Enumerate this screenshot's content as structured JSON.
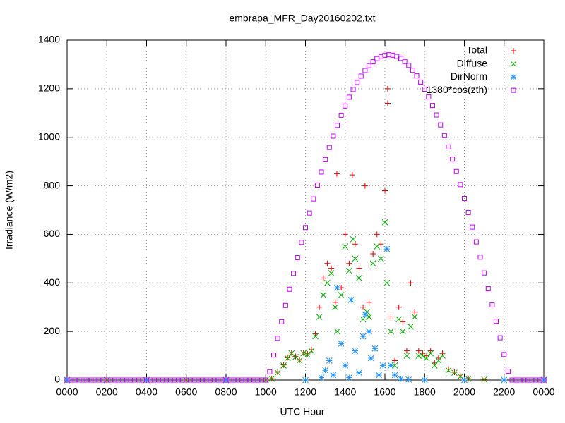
{
  "chart_data": {
    "type": "scatter",
    "title": "embrapa_MFR_Day20160202.txt",
    "xlabel": "UTC Hour",
    "ylabel": "Irradiance (W/m2)",
    "xlim": [
      0,
      24
    ],
    "ylim": [
      0,
      1400
    ],
    "xticks": [
      {
        "value": 0,
        "label": "0000"
      },
      {
        "value": 2,
        "label": "0200"
      },
      {
        "value": 4,
        "label": "0400"
      },
      {
        "value": 6,
        "label": "0600"
      },
      {
        "value": 8,
        "label": "0800"
      },
      {
        "value": 10,
        "label": "1000"
      },
      {
        "value": 12,
        "label": "1200"
      },
      {
        "value": 14,
        "label": "1400"
      },
      {
        "value": 16,
        "label": "1600"
      },
      {
        "value": 18,
        "label": "1800"
      },
      {
        "value": 20,
        "label": "2000"
      },
      {
        "value": 22,
        "label": "2200"
      },
      {
        "value": 24,
        "label": "0000"
      }
    ],
    "yticks": [
      0,
      200,
      400,
      600,
      800,
      1000,
      1200,
      1400
    ],
    "grid": true,
    "legend": "top-right",
    "series": [
      {
        "name": "Total",
        "color": "#e00000",
        "marker": "plus",
        "x": [
          0,
          2,
          4,
          6,
          8,
          10,
          10.3,
          10.6,
          10.9,
          11.1,
          11.3,
          11.5,
          11.7,
          11.9,
          12.1,
          12.3,
          12.5,
          12.7,
          12.9,
          13.1,
          13.3,
          13.5,
          13.58,
          13.8,
          14.0,
          14.2,
          14.36,
          14.5,
          14.7,
          14.9,
          15.0,
          15.2,
          15.4,
          15.6,
          15.8,
          16.0,
          16.14,
          16.14,
          16.3,
          16.5,
          16.7,
          16.9,
          17.1,
          17.3,
          17.5,
          17.7,
          17.9,
          18.1,
          18.3,
          18.5,
          18.7,
          18.9,
          19.2,
          19.5,
          19.8,
          20.2,
          21,
          22,
          24
        ],
        "values": [
          0,
          0,
          0,
          0,
          0,
          0,
          5,
          32,
          62,
          92,
          112,
          97,
          82,
          112,
          108,
          125,
          190,
          300,
          420,
          480,
          460,
          320,
          850,
          380,
          600,
          480,
          845,
          560,
          460,
          300,
          800,
          320,
          520,
          600,
          560,
          780,
          1200,
          1140,
          260,
          80,
          300,
          240,
          120,
          400,
          280,
          120,
          110,
          100,
          120,
          70,
          90,
          110,
          45,
          32,
          16,
          5,
          2,
          0,
          0
        ]
      },
      {
        "name": "Diffuse",
        "color": "#00b000",
        "marker": "cross",
        "x": [
          0,
          2,
          4,
          6,
          8,
          10,
          10.3,
          10.6,
          10.9,
          11.1,
          11.3,
          11.5,
          11.7,
          11.9,
          12.1,
          12.3,
          12.5,
          12.7,
          12.9,
          13.1,
          13.3,
          13.5,
          13.6,
          13.8,
          14.0,
          14.2,
          14.4,
          14.5,
          14.7,
          14.9,
          15.1,
          15.2,
          15.4,
          15.6,
          15.8,
          16.0,
          16.1,
          16.3,
          16.5,
          16.7,
          16.9,
          17.1,
          17.3,
          17.5,
          17.7,
          17.9,
          18.1,
          18.3,
          18.5,
          18.7,
          18.9,
          19.2,
          19.5,
          19.8,
          20.2,
          21,
          22,
          24
        ],
        "values": [
          0,
          0,
          0,
          0,
          0,
          0,
          5,
          30,
          60,
          90,
          110,
          95,
          80,
          110,
          105,
          120,
          180,
          260,
          350,
          400,
          440,
          300,
          200,
          350,
          550,
          450,
          580,
          500,
          420,
          250,
          280,
          260,
          480,
          550,
          500,
          650,
          400,
          200,
          60,
          250,
          200,
          100,
          220,
          260,
          100,
          100,
          90,
          110,
          60,
          80,
          100,
          40,
          30,
          15,
          5,
          2,
          0,
          0
        ]
      },
      {
        "name": "DirNorm",
        "color": "#1e90ff",
        "marker": "star",
        "x": [
          0,
          4,
          8,
          12,
          12.8,
          13.0,
          13.2,
          13.4,
          13.6,
          13.8,
          14.0,
          14.2,
          14.3,
          14.5,
          14.7,
          14.9,
          15.0,
          15.2,
          15.3,
          15.5,
          15.7,
          15.9,
          16.1,
          16.3,
          16.5,
          16.8,
          17.2,
          18,
          20,
          22,
          24
        ],
        "values": [
          0,
          0,
          0,
          0,
          10,
          40,
          80,
          20,
          380,
          150,
          60,
          10,
          330,
          120,
          30,
          180,
          270,
          200,
          90,
          130,
          20,
          60,
          540,
          60,
          20,
          5,
          2,
          0,
          0,
          0,
          0
        ]
      },
      {
        "name": "1380*cos(zth)",
        "color": "#c000ff",
        "marker": "square",
        "x": [
          0,
          0.2,
          0.4,
          0.6,
          0.8,
          1,
          1.2,
          1.4,
          1.6,
          1.8,
          2,
          2.2,
          2.4,
          2.6,
          2.8,
          3,
          3.2,
          3.4,
          3.6,
          3.8,
          4,
          4.2,
          4.4,
          4.6,
          4.8,
          5,
          5.2,
          5.4,
          5.6,
          5.8,
          6,
          6.2,
          6.4,
          6.6,
          6.8,
          7,
          7.2,
          7.4,
          7.6,
          7.8,
          8,
          8.2,
          8.4,
          8.6,
          8.8,
          9,
          9.2,
          9.4,
          9.6,
          9.8,
          10,
          10.2,
          10.4,
          10.6,
          10.8,
          11,
          11.2,
          11.4,
          11.6,
          11.8,
          12,
          12.2,
          12.4,
          12.6,
          12.8,
          13,
          13.2,
          13.4,
          13.6,
          13.8,
          14,
          14.2,
          14.4,
          14.6,
          14.8,
          15,
          15.2,
          15.4,
          15.6,
          15.8,
          16,
          16.2,
          16.4,
          16.6,
          16.8,
          17,
          17.2,
          17.4,
          17.6,
          17.8,
          18,
          18.2,
          18.4,
          18.6,
          18.8,
          19,
          19.2,
          19.4,
          19.6,
          19.8,
          20,
          20.2,
          20.4,
          20.6,
          20.8,
          21,
          21.2,
          21.4,
          21.6,
          21.8,
          22,
          22.2,
          22.4,
          22.6,
          22.8,
          23,
          23.2,
          23.4,
          23.6,
          23.8,
          24
        ],
        "values": [
          0,
          0,
          0,
          0,
          0,
          0,
          0,
          0,
          0,
          0,
          0,
          0,
          0,
          0,
          0,
          0,
          0,
          0,
          0,
          0,
          0,
          0,
          0,
          0,
          0,
          0,
          0,
          0,
          0,
          0,
          0,
          0,
          0,
          0,
          0,
          0,
          0,
          0,
          0,
          0,
          0,
          0,
          0,
          0,
          0,
          0,
          0,
          0,
          0,
          0,
          0,
          34,
          103,
          172,
          240,
          307,
          374,
          439,
          504,
          567,
          628,
          688,
          746,
          803,
          857,
          908,
          958,
          1005,
          1049,
          1091,
          1129,
          1165,
          1197,
          1226,
          1252,
          1275,
          1295,
          1311,
          1324,
          1332,
          1338,
          1340,
          1338,
          1333,
          1325,
          1312,
          1296,
          1276,
          1253,
          1227,
          1198,
          1166,
          1131,
          1092,
          1051,
          1007,
          960,
          910,
          859,
          805,
          748,
          690,
          630,
          569,
          506,
          441,
          376,
          309,
          242,
          174,
          105,
          36,
          0,
          0,
          0,
          0,
          0,
          0,
          0,
          0,
          0
        ]
      }
    ]
  }
}
